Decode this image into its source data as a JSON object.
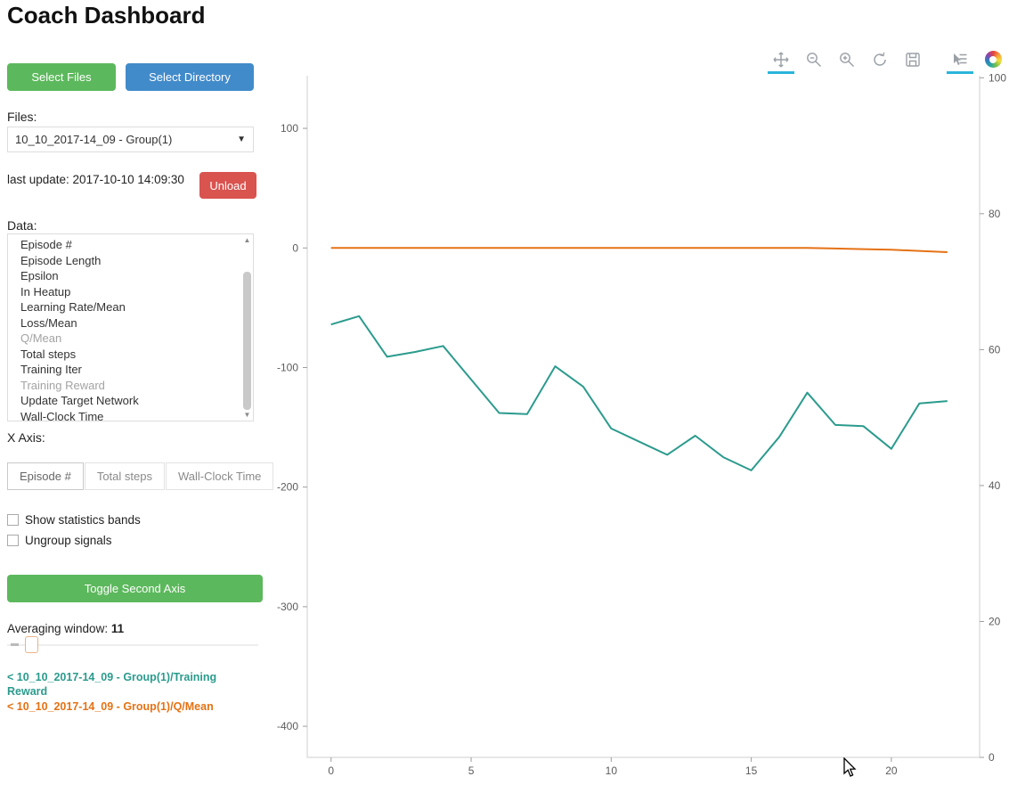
{
  "page": {
    "title": "Coach Dashboard"
  },
  "sidebar": {
    "select_files_label": "Select Files",
    "select_directory_label": "Select Directory",
    "files_label": "Files:",
    "files_selected_value": "10_10_2017-14_09 - Group(1)",
    "last_update_text": "last update: 2017-10-10 14:09:30",
    "unload_label": "Unload",
    "data_label": "Data:",
    "data_items": [
      {
        "label": "Episode #",
        "selected": false
      },
      {
        "label": "Episode Length",
        "selected": false
      },
      {
        "label": "Epsilon",
        "selected": false
      },
      {
        "label": "In Heatup",
        "selected": false
      },
      {
        "label": "Learning Rate/Mean",
        "selected": false
      },
      {
        "label": "Loss/Mean",
        "selected": false
      },
      {
        "label": "Q/Mean",
        "selected": true
      },
      {
        "label": "Total steps",
        "selected": false
      },
      {
        "label": "Training Iter",
        "selected": false
      },
      {
        "label": "Training Reward",
        "selected": true
      },
      {
        "label": "Update Target Network",
        "selected": false
      },
      {
        "label": "Wall-Clock Time",
        "selected": false
      }
    ],
    "x_axis_label": "X Axis:",
    "x_axis_options": [
      "Episode #",
      "Total steps",
      "Wall-Clock Time"
    ],
    "x_axis_selected": "Episode #",
    "checkboxes": [
      {
        "label": "Show statistics bands",
        "checked": false
      },
      {
        "label": "Ungroup signals",
        "checked": false
      }
    ],
    "toggle_second_axis_label": "Toggle Second Axis",
    "averaging_label": "Averaging window:",
    "averaging_value": "11",
    "legend": [
      {
        "label": "< 10_10_2017-14_09 - Group(1)/Training Reward",
        "color": "#2b9b8d"
      },
      {
        "label": "< 10_10_2017-14_09 - Group(1)/Q/Mean",
        "color": "#e57215"
      }
    ]
  },
  "toolbar": {
    "tools": [
      {
        "name": "pan",
        "active": true
      },
      {
        "name": "box-zoom",
        "active": false
      },
      {
        "name": "wheel-zoom",
        "active": false
      },
      {
        "name": "reset",
        "active": false
      },
      {
        "name": "save",
        "active": false
      },
      {
        "name": "hover",
        "active": true
      },
      {
        "name": "bokeh-logo",
        "active": false
      }
    ],
    "active_color": "#2ab5da"
  },
  "chart_data": {
    "type": "line",
    "title": "",
    "xlabel": "",
    "ylabel": "",
    "grid": false,
    "legend_position": "left-panel",
    "x": [
      0,
      1,
      2,
      3,
      4,
      5,
      6,
      7,
      8,
      9,
      10,
      11,
      12,
      13,
      14,
      15,
      16,
      17,
      18,
      19,
      20,
      21,
      22
    ],
    "series": [
      {
        "name": "10_10_2017-14_09 - Group(1)/Training Reward",
        "color": "#2b9b8d",
        "axis": "left",
        "values": [
          -64,
          -57,
          -91,
          -87,
          -82,
          -110,
          -138,
          -139,
          -99,
          -116,
          -151,
          -162,
          -173,
          -157,
          -175,
          -186,
          -158,
          -121,
          -148,
          -149,
          -168,
          -130,
          -128
        ]
      },
      {
        "name": "10_10_2017-14_09 - Group(1)/Q/Mean",
        "color": "#e57215",
        "axis": "left",
        "values": [
          0,
          0,
          0,
          0,
          0,
          0,
          0,
          0,
          0,
          0,
          0,
          0,
          0,
          0,
          0,
          0,
          0,
          0,
          -0.5,
          -1,
          -1.5,
          -2.5,
          -3.5
        ]
      }
    ],
    "left_axis": {
      "ticks": [
        100,
        0,
        -100,
        -200,
        -300,
        -400
      ],
      "range": [
        -426,
        144
      ]
    },
    "right_axis": {
      "ticks": [
        100,
        80,
        60,
        40,
        20,
        0
      ],
      "range": [
        0,
        100.3
      ]
    },
    "x_axis": {
      "ticks": [
        0,
        5,
        10,
        15,
        20
      ],
      "range": [
        -0.85,
        23.15
      ]
    }
  }
}
